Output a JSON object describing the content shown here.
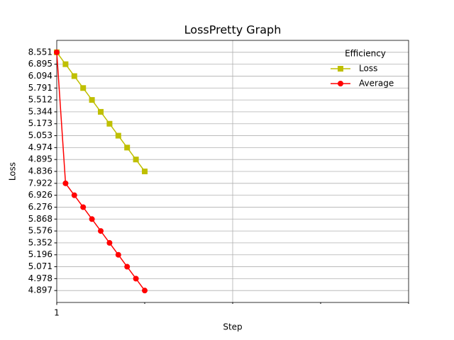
{
  "chart_data": {
    "type": "line",
    "title": "LossPretty Graph",
    "xlabel": "Step",
    "ylabel": "Loss",
    "legend_title": "Efficiency",
    "legend_loc": "upper right",
    "x": [
      1,
      2,
      3,
      4,
      5,
      6,
      7,
      8,
      9,
      10,
      11
    ],
    "xlim": [
      1,
      41
    ],
    "xticks": [
      1
    ],
    "x_minor_ticks": [
      11,
      21,
      31,
      41
    ],
    "x_gridlines": [
      21
    ],
    "ycategories": [
      4.897,
      4.978,
      5.071,
      5.196,
      5.352,
      5.576,
      5.868,
      6.276,
      6.926,
      7.922,
      4.836,
      4.895,
      4.974,
      5.053,
      5.173,
      5.344,
      5.512,
      5.791,
      6.094,
      6.895,
      8.551
    ],
    "grid": true,
    "series": [
      {
        "name": "Loss",
        "color": "#bfbf00",
        "marker": "square",
        "values": [
          8.551,
          6.895,
          6.094,
          5.791,
          5.512,
          5.344,
          5.173,
          5.053,
          4.974,
          4.895,
          4.836
        ]
      },
      {
        "name": "Average",
        "color": "#ff0000",
        "marker": "circle",
        "values": [
          8.551,
          7.922,
          6.926,
          6.276,
          5.868,
          5.576,
          5.352,
          5.196,
          5.071,
          4.978,
          4.897
        ]
      }
    ]
  }
}
